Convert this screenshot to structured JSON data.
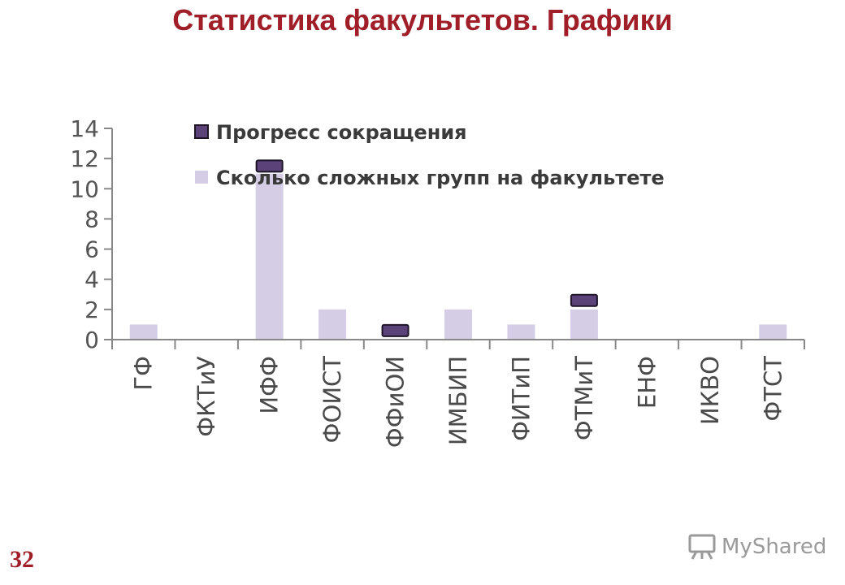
{
  "slide": {
    "title": "Статистика факультетов. Графики",
    "number": "32",
    "watermark": "MyShared"
  },
  "colors": {
    "title": "#a01e28",
    "progress": "#5b4379",
    "groups": "#d5cde6",
    "axis": "#888888"
  },
  "chart_data": {
    "type": "bar",
    "categories": [
      "ГФ",
      "ФКТиУ",
      "ИФФ",
      "ФОИСТ",
      "ФФиОИ",
      "ИМБИП",
      "ФИТиП",
      "ФТМиТ",
      "ЕНФ",
      "ИКВО",
      "ФТСТ"
    ],
    "series": [
      {
        "name": "Прогресс сокращения",
        "values": [
          0,
          0,
          11.5,
          0,
          0.6,
          0,
          0,
          2.6,
          0,
          0,
          0
        ],
        "style": "marker"
      },
      {
        "name": "Сколько сложных групп на факультете",
        "values": [
          1,
          0,
          11,
          2,
          0,
          2,
          1,
          2,
          0,
          0,
          1
        ],
        "style": "bar"
      }
    ],
    "ylim": [
      0,
      14
    ],
    "yticks": [
      "0",
      "2",
      "4",
      "6",
      "8",
      "10",
      "12",
      "14"
    ],
    "grid": false,
    "legend_position": "top-inside"
  }
}
